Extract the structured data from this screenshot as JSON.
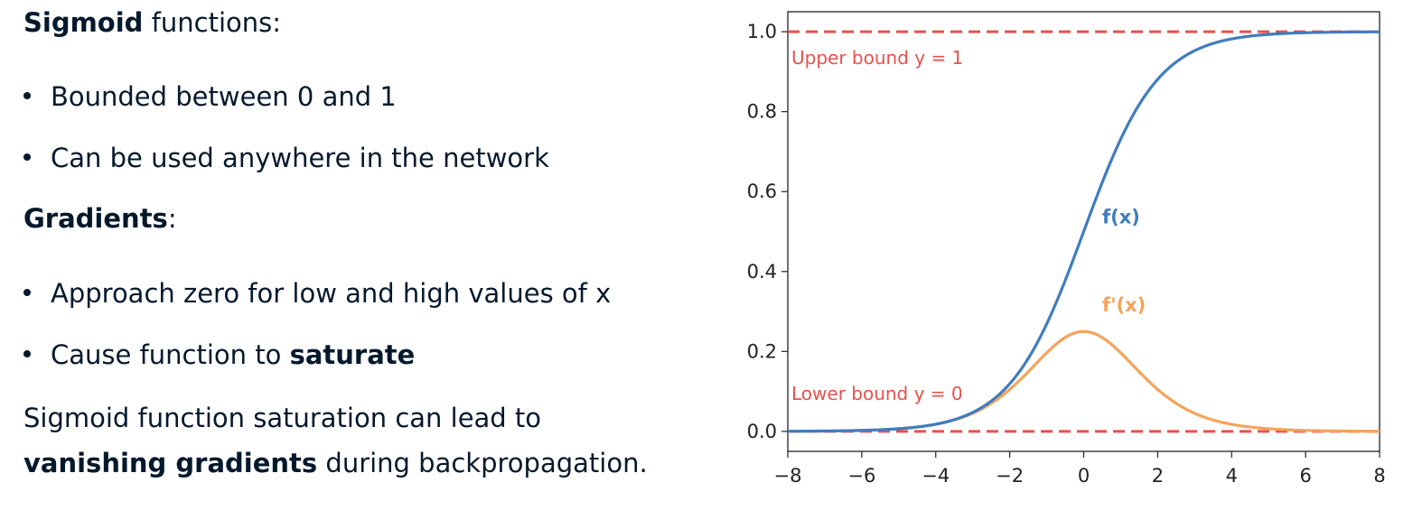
{
  "text": {
    "heading1_bold": "Sigmoid",
    "heading1_rest": " functions:",
    "bullets1": [
      "Bounded between 0 and 1",
      "Can be used anywhere in the network"
    ],
    "heading2_bold": "Gradients",
    "heading2_rest": ":",
    "bullet2a": "Approach zero for low and high values of x",
    "bullet2b_pre": "Cause function to ",
    "bullet2b_bold": "saturate",
    "summary_line1": "Sigmoid function saturation can lead to",
    "summary_bold": "vanishing gradients",
    "summary_rest": " during backpropagation."
  },
  "chart_data": {
    "type": "line",
    "xlim": [
      -8,
      8
    ],
    "ylim": [
      -0.05,
      1.05
    ],
    "xticks": [
      -8,
      -6,
      -4,
      -2,
      0,
      2,
      4,
      6,
      8
    ],
    "xtick_labels": [
      "−8",
      "−6",
      "−4",
      "−2",
      "0",
      "2",
      "4",
      "6",
      "8"
    ],
    "yticks": [
      0.0,
      0.2,
      0.4,
      0.6,
      0.8,
      1.0
    ],
    "ytick_labels": [
      "0.0",
      "0.2",
      "0.4",
      "0.6",
      "0.8",
      "1.0"
    ],
    "grid": false,
    "series": [
      {
        "name": "f(x)",
        "function": "sigmoid",
        "color": "#3f7dbf"
      },
      {
        "name": "f'(x)",
        "function": "sigmoid_derivative",
        "color": "#f3a45b"
      }
    ],
    "reference_lines": [
      {
        "y": 1.0,
        "label": "Upper bound y = 1",
        "color": "#e8514a"
      },
      {
        "y": 0.0,
        "label": "Lower bound y = 0",
        "color": "#e8514a"
      }
    ],
    "annotations": [
      {
        "text": "f(x)",
        "x": 0.5,
        "y": 0.52,
        "color": "#3f7dbf"
      },
      {
        "text": "f'(x)",
        "x": 0.5,
        "y": 0.3,
        "color": "#f3a45b"
      }
    ]
  }
}
